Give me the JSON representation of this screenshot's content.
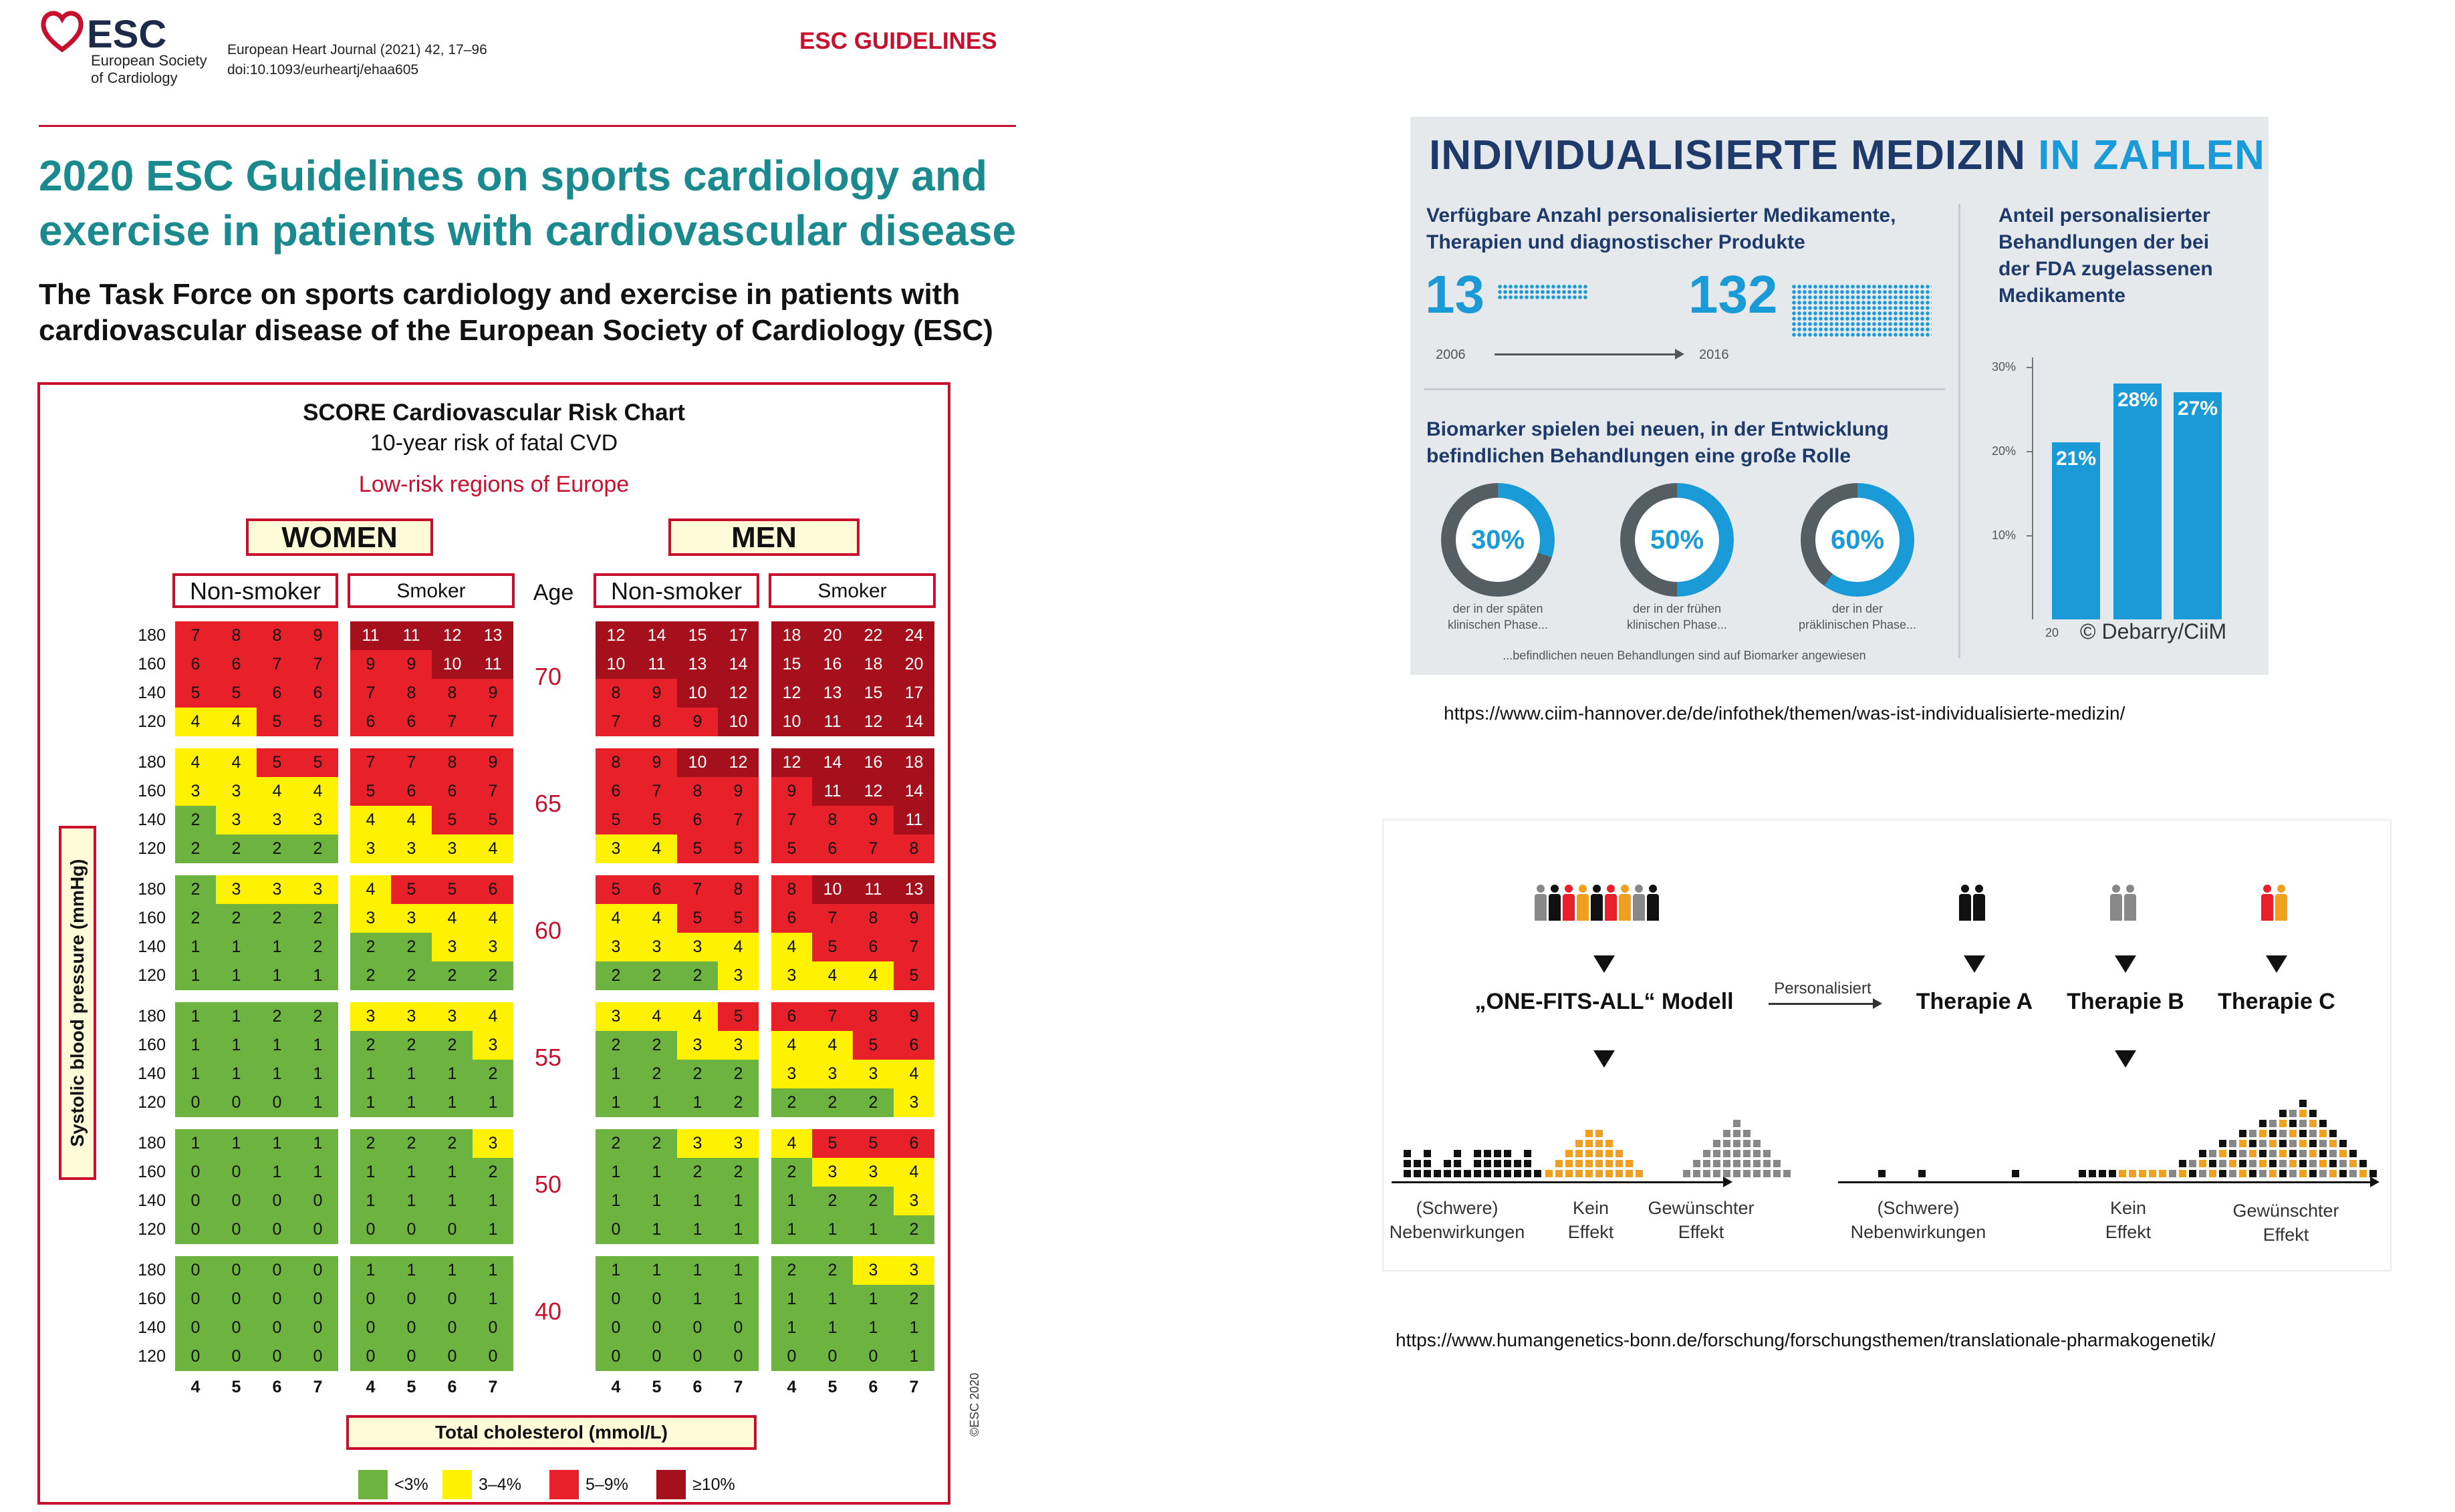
{
  "esc_header": {
    "logo_text": "ESC",
    "society_line1": "European Society",
    "society_line2": "of Cardiology",
    "journal_line1": "European Heart Journal (2021) 42, 17–96",
    "journal_line2": "doi:10.1093/eurheartj/ehaa605",
    "section_label": "ESC GUIDELINES",
    "title_line1": "2020 ESC Guidelines on sports cardiology and",
    "title_line2": "exercise in patients with cardiovascular disease",
    "subtitle_line1": "The Task Force on sports cardiology and exercise in patients with",
    "subtitle_line2": "cardiovascular disease of the European Society of Cardiology (ESC)"
  },
  "score_chart": {
    "title": "SCORE Cardiovascular Risk Chart",
    "subtitle": "10-year risk of fatal CVD",
    "region": "Low-risk regions of Europe",
    "women_label": "WOMEN",
    "men_label": "MEN",
    "nonsmoker_label": "Non-smoker",
    "smoker_label": "Smoker",
    "age_header": "Age",
    "yaxis_label": "Systolic blood pressure (mmHg)",
    "xaxis_label": "Total cholesterol (mmol/L)",
    "copyright": "©ESC 2020",
    "sbp_values": [
      "180",
      "160",
      "140",
      "120"
    ],
    "cholesterol_values": [
      "4",
      "5",
      "6",
      "7"
    ],
    "legend": [
      {
        "label": "<3%",
        "color": "#6cb33f"
      },
      {
        "label": "3–4%",
        "color": "#fff200"
      },
      {
        "label": "5–9%",
        "color": "#e8202a"
      },
      {
        "label": "≥10%",
        "color": "#a6101c"
      }
    ],
    "age_groups": [
      {
        "age": "70",
        "women_nonsmoker": [
          [
            7,
            8,
            8,
            9
          ],
          [
            6,
            6,
            7,
            7
          ],
          [
            5,
            5,
            6,
            6
          ],
          [
            4,
            4,
            5,
            5
          ]
        ],
        "women_smoker": [
          [
            11,
            11,
            12,
            13
          ],
          [
            9,
            9,
            10,
            11
          ],
          [
            7,
            8,
            8,
            9
          ],
          [
            6,
            6,
            7,
            7
          ]
        ],
        "men_nonsmoker": [
          [
            12,
            14,
            15,
            17
          ],
          [
            10,
            11,
            13,
            14
          ],
          [
            8,
            9,
            10,
            12
          ],
          [
            7,
            8,
            9,
            10
          ]
        ],
        "men_smoker": [
          [
            18,
            20,
            22,
            24
          ],
          [
            15,
            16,
            18,
            20
          ],
          [
            12,
            13,
            15,
            17
          ],
          [
            10,
            11,
            12,
            14
          ]
        ]
      },
      {
        "age": "65",
        "women_nonsmoker": [
          [
            4,
            4,
            5,
            5
          ],
          [
            3,
            3,
            4,
            4
          ],
          [
            2,
            3,
            3,
            3
          ],
          [
            2,
            2,
            2,
            2
          ]
        ],
        "women_smoker": [
          [
            7,
            7,
            8,
            9
          ],
          [
            5,
            6,
            6,
            7
          ],
          [
            4,
            4,
            5,
            5
          ],
          [
            3,
            3,
            3,
            4
          ]
        ],
        "men_nonsmoker": [
          [
            8,
            9,
            10,
            12
          ],
          [
            6,
            7,
            8,
            9
          ],
          [
            5,
            5,
            6,
            7
          ],
          [
            3,
            4,
            5,
            5
          ]
        ],
        "men_smoker": [
          [
            12,
            14,
            16,
            18
          ],
          [
            9,
            11,
            12,
            14
          ],
          [
            7,
            8,
            9,
            11
          ],
          [
            5,
            6,
            7,
            8
          ]
        ]
      },
      {
        "age": "60",
        "women_nonsmoker": [
          [
            2,
            3,
            3,
            3
          ],
          [
            2,
            2,
            2,
            2
          ],
          [
            1,
            1,
            1,
            2
          ],
          [
            1,
            1,
            1,
            1
          ]
        ],
        "women_smoker": [
          [
            4,
            5,
            5,
            6
          ],
          [
            3,
            3,
            4,
            4
          ],
          [
            2,
            2,
            3,
            3
          ],
          [
            2,
            2,
            2,
            2
          ]
        ],
        "men_nonsmoker": [
          [
            5,
            6,
            7,
            8
          ],
          [
            4,
            4,
            5,
            5
          ],
          [
            3,
            3,
            3,
            4
          ],
          [
            2,
            2,
            2,
            3
          ]
        ],
        "men_smoker": [
          [
            8,
            10,
            11,
            13
          ],
          [
            6,
            7,
            8,
            9
          ],
          [
            4,
            5,
            6,
            7
          ],
          [
            3,
            4,
            4,
            5
          ]
        ]
      },
      {
        "age": "55",
        "women_nonsmoker": [
          [
            1,
            1,
            2,
            2
          ],
          [
            1,
            1,
            1,
            1
          ],
          [
            1,
            1,
            1,
            1
          ],
          [
            0,
            0,
            0,
            1
          ]
        ],
        "women_smoker": [
          [
            3,
            3,
            3,
            4
          ],
          [
            2,
            2,
            2,
            3
          ],
          [
            1,
            1,
            1,
            2
          ],
          [
            1,
            1,
            1,
            1
          ]
        ],
        "men_nonsmoker": [
          [
            3,
            4,
            4,
            5
          ],
          [
            2,
            2,
            3,
            3
          ],
          [
            1,
            2,
            2,
            2
          ],
          [
            1,
            1,
            1,
            2
          ]
        ],
        "men_smoker": [
          [
            6,
            7,
            8,
            9
          ],
          [
            4,
            4,
            5,
            6
          ],
          [
            3,
            3,
            3,
            4
          ],
          [
            2,
            2,
            2,
            3
          ]
        ]
      },
      {
        "age": "50",
        "women_nonsmoker": [
          [
            1,
            1,
            1,
            1
          ],
          [
            0,
            0,
            1,
            1
          ],
          [
            0,
            0,
            0,
            0
          ],
          [
            0,
            0,
            0,
            0
          ]
        ],
        "women_smoker": [
          [
            2,
            2,
            2,
            3
          ],
          [
            1,
            1,
            1,
            2
          ],
          [
            1,
            1,
            1,
            1
          ],
          [
            0,
            0,
            0,
            1
          ]
        ],
        "men_nonsmoker": [
          [
            2,
            2,
            3,
            3
          ],
          [
            1,
            1,
            2,
            2
          ],
          [
            1,
            1,
            1,
            1
          ],
          [
            0,
            1,
            1,
            1
          ]
        ],
        "men_smoker": [
          [
            4,
            5,
            5,
            6
          ],
          [
            2,
            3,
            3,
            4
          ],
          [
            1,
            2,
            2,
            3
          ],
          [
            1,
            1,
            1,
            2
          ]
        ]
      },
      {
        "age": "40",
        "women_nonsmoker": [
          [
            0,
            0,
            0,
            0
          ],
          [
            0,
            0,
            0,
            0
          ],
          [
            0,
            0,
            0,
            0
          ],
          [
            0,
            0,
            0,
            0
          ]
        ],
        "women_smoker": [
          [
            1,
            1,
            1,
            1
          ],
          [
            0,
            0,
            0,
            1
          ],
          [
            0,
            0,
            0,
            0
          ],
          [
            0,
            0,
            0,
            0
          ]
        ],
        "men_nonsmoker": [
          [
            1,
            1,
            1,
            1
          ],
          [
            0,
            0,
            1,
            1
          ],
          [
            0,
            0,
            0,
            0
          ],
          [
            0,
            0,
            0,
            0
          ]
        ],
        "men_smoker": [
          [
            2,
            2,
            3,
            3
          ],
          [
            1,
            1,
            1,
            2
          ],
          [
            1,
            1,
            1,
            1
          ],
          [
            0,
            0,
            0,
            1
          ]
        ]
      }
    ]
  },
  "infographic1": {
    "title_main": "INDIVIDUALISIERTE MEDIZIN",
    "title_accent": "IN ZAHLEN",
    "section1_line1": "Verfügbare Anzahl personalisierter Medikamente,",
    "section1_line2": "Therapien und diagnostischer Produkte",
    "count_2006": "13",
    "count_2016": "132",
    "year_start": "2006",
    "year_end": "2016",
    "section2_line1": "Biomarker spielen bei neuen, in der Entwicklung",
    "section2_line2": "befindlichen Behandlungen eine große Rolle",
    "rings": [
      {
        "pct": 30,
        "label": "30%",
        "cap1": "der in der späten",
        "cap2": "klinischen Phase..."
      },
      {
        "pct": 50,
        "label": "50%",
        "cap1": "der in der frühen",
        "cap2": "klinischen Phase..."
      },
      {
        "pct": 60,
        "label": "60%",
        "cap1": "der in der",
        "cap2": "präklinischen Phase..."
      }
    ],
    "ring_footnote": "...befindlichen neuen Behandlungen sind auf Biomarker angewiesen",
    "section3_line1": "Anteil personalisierter",
    "section3_line2": "Behandlungen der bei",
    "section3_line3": "der FDA zugelassenen",
    "section3_line4": "Medikamente",
    "bar_axis": [
      "30%",
      "20%",
      "10%"
    ],
    "bars": [
      {
        "value": 21,
        "label": "21%"
      },
      {
        "value": 28,
        "label": "28%"
      },
      {
        "value": 27,
        "label": "27%"
      }
    ],
    "bar_year_fragment": "20",
    "credit": "© Debarry/CiiM",
    "colors": {
      "navy": "#1e3a6b",
      "blue": "#1a9ad6",
      "bg": "#e5e9ec"
    }
  },
  "url1": "https://www.ciim-hannover.de/de/infothek/themen/was-ist-individualisierte-medizin/",
  "infographic2": {
    "model_label": "„ONE-FITS-ALL“ Modell",
    "arrow_label": "Personalisiert",
    "therapy_a": "Therapie A",
    "therapy_b": "Therapie B",
    "therapy_c": "Therapie C",
    "left_axis_labels": [
      {
        "l1": "(Schwere)",
        "l2": "Nebenwirkungen"
      },
      {
        "l1": "Kein",
        "l2": "Effekt"
      },
      {
        "l1": "Gewünschter",
        "l2": "Effekt"
      }
    ],
    "right_axis_labels": [
      {
        "l1": "(Schwere)",
        "l2": "Nebenwirkungen"
      },
      {
        "l1": "Kein",
        "l2": "Effekt"
      },
      {
        "l1": "Gewünschter",
        "l2": "Effekt"
      }
    ],
    "colors": {
      "black": "#111111",
      "orange": "#f0a020",
      "gray": "#888888",
      "red": "#e8202a"
    }
  },
  "url2": "https://www.humangenetics-bonn.de/forschung/forschungsthemen/translationale-pharmakogenetik/"
}
